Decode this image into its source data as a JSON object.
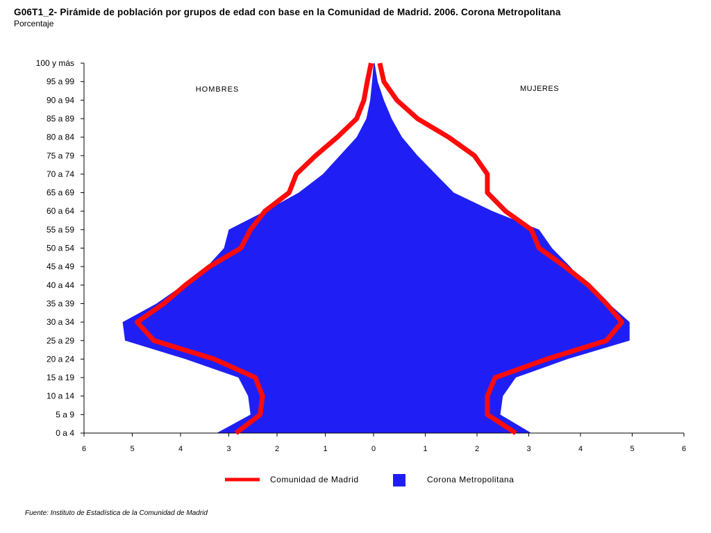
{
  "header": {
    "title": "G06T1_2- Pirámide de población por grupos de edad con base en la Comunidad de Madrid.  2006.  Corona Metropolitana",
    "subtitle": "Porcentaje"
  },
  "footer": {
    "source": "Fuente: Instituto de Estadística de la Comunidad de Madrid"
  },
  "colors": {
    "corona": "#1f1ff5",
    "madrid": "#ff0a0a"
  },
  "chart_data": {
    "type": "area",
    "orientation": "horizontal-pyramid",
    "categories": [
      "0 a 4",
      "5 a 9",
      "10 a 14",
      "15 a 19",
      "20 a 24",
      "25 a 29",
      "30 a 34",
      "35 a 39",
      "40 a 44",
      "45 a 49",
      "50 a 54",
      "55 a 59",
      "60 a 64",
      "65 a 69",
      "70 a 74",
      "75 a 79",
      "80 a 84",
      "85 a 89",
      "90 a 94",
      "95 a 99",
      "100 y más"
    ],
    "side_labels": {
      "left": "HOMBRES",
      "right": "MUJERES"
    },
    "xticks": [
      "6",
      "5",
      "4",
      "3",
      "2",
      "1",
      "0",
      "1",
      "2",
      "3",
      "4",
      "5",
      "6"
    ],
    "xlim": [
      -6,
      6
    ],
    "legend": {
      "placement": "bottom"
    },
    "series": [
      {
        "name": "Corona Metropolitana",
        "style": "filled-area",
        "hombres": [
          3.25,
          2.55,
          2.6,
          2.8,
          3.9,
          5.15,
          5.2,
          4.5,
          3.95,
          3.45,
          3.1,
          3.0,
          2.25,
          1.55,
          1.05,
          0.7,
          0.35,
          0.15,
          0.07,
          0.03,
          0.0
        ],
        "mujeres": [
          3.05,
          2.45,
          2.5,
          2.75,
          3.75,
          4.95,
          4.95,
          4.55,
          4.1,
          3.8,
          3.45,
          3.2,
          2.3,
          1.55,
          1.2,
          0.85,
          0.55,
          0.35,
          0.2,
          0.08,
          0.02
        ]
      },
      {
        "name": "Comunidad de Madrid",
        "style": "line",
        "hombres": [
          2.85,
          2.35,
          2.3,
          2.45,
          3.3,
          4.55,
          4.9,
          4.35,
          3.9,
          3.4,
          2.75,
          2.55,
          2.25,
          1.75,
          1.6,
          1.2,
          0.75,
          0.35,
          0.2,
          0.13,
          0.05
        ],
        "mujeres": [
          2.75,
          2.2,
          2.2,
          2.35,
          3.35,
          4.5,
          4.8,
          4.5,
          4.15,
          3.7,
          3.2,
          3.05,
          2.55,
          2.2,
          2.2,
          1.95,
          1.45,
          0.85,
          0.45,
          0.2,
          0.12
        ]
      }
    ]
  }
}
